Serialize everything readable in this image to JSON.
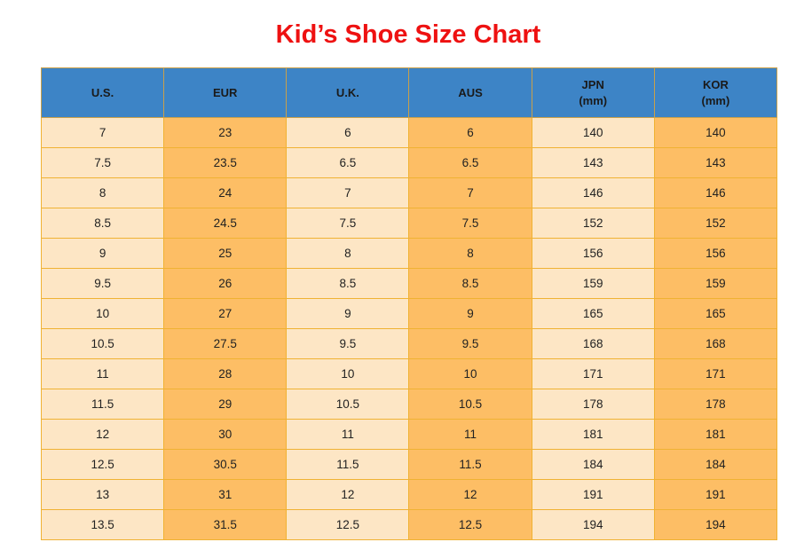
{
  "title": "Kid’s Shoe Size Chart",
  "headers": [
    {
      "label": "U.S.",
      "unit": ""
    },
    {
      "label": "EUR",
      "unit": ""
    },
    {
      "label": "U.K.",
      "unit": ""
    },
    {
      "label": "AUS",
      "unit": ""
    },
    {
      "label": "JPN",
      "unit": "(mm)"
    },
    {
      "label": "KOR",
      "unit": "(mm)"
    }
  ],
  "rows": [
    [
      "7",
      "23",
      "6",
      "6",
      "140",
      "140"
    ],
    [
      "7.5",
      "23.5",
      "6.5",
      "6.5",
      "143",
      "143"
    ],
    [
      "8",
      "24",
      "7",
      "7",
      "146",
      "146"
    ],
    [
      "8.5",
      "24.5",
      "7.5",
      "7.5",
      "152",
      "152"
    ],
    [
      "9",
      "25",
      "8",
      "8",
      "156",
      "156"
    ],
    [
      "9.5",
      "26",
      "8.5",
      "8.5",
      "159",
      "159"
    ],
    [
      "10",
      "27",
      "9",
      "9",
      "165",
      "165"
    ],
    [
      "10.5",
      "27.5",
      "9.5",
      "9.5",
      "168",
      "168"
    ],
    [
      "11",
      "28",
      "10",
      "10",
      "171",
      "171"
    ],
    [
      "11.5",
      "29",
      "10.5",
      "10.5",
      "178",
      "178"
    ],
    [
      "12",
      "30",
      "11",
      "11",
      "181",
      "181"
    ],
    [
      "12.5",
      "30.5",
      "11.5",
      "11.5",
      "184",
      "184"
    ],
    [
      "13",
      "31",
      "12",
      "12",
      "191",
      "191"
    ],
    [
      "13.5",
      "31.5",
      "12.5",
      "12.5",
      "194",
      "194"
    ]
  ],
  "colors": {
    "title": "#ee1111",
    "header_bg": "#3d84c6",
    "cell_light": "#fde6c5",
    "cell_dark": "#fdbe65",
    "border": "#f0b233"
  }
}
